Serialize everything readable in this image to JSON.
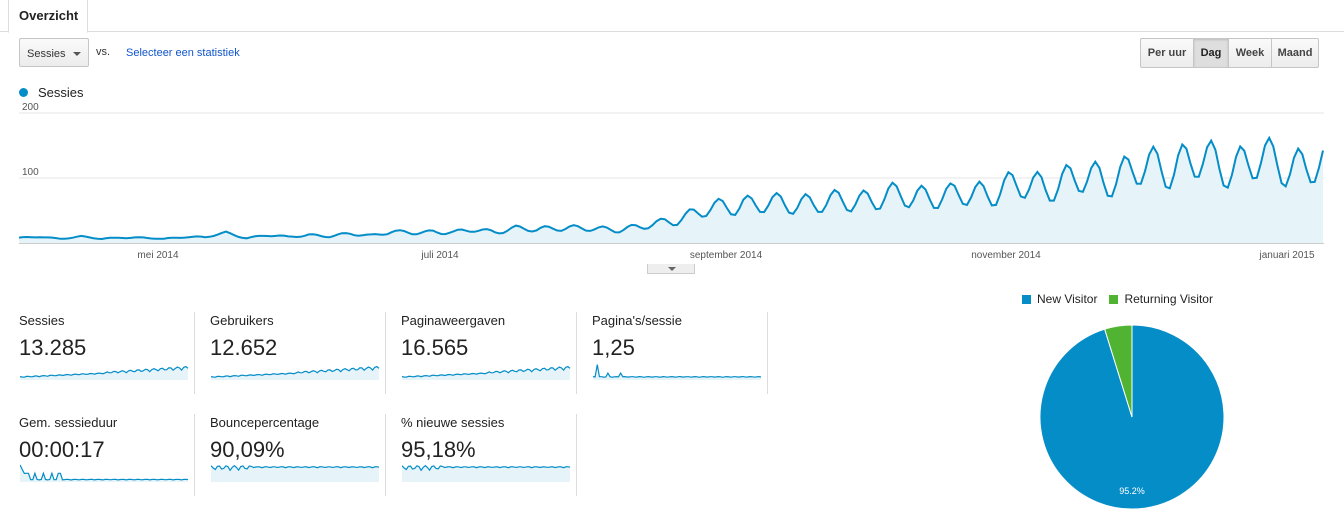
{
  "tabs": {
    "overview_label": "Overzicht"
  },
  "toolbar": {
    "metric_select_value": "Sessies",
    "vs_label": "vs.",
    "select_stat_link": "Selecteer een statistiek",
    "granularity": [
      {
        "label": "Per uur",
        "active": false
      },
      {
        "label": "Dag",
        "active": true
      },
      {
        "label": "Week",
        "active": false
      },
      {
        "label": "Maand",
        "active": false
      }
    ]
  },
  "colors": {
    "series": "#058dc7",
    "fill": "#e6f4fa",
    "new_visitor": "#058dc7",
    "returning_visitor": "#50b432"
  },
  "main_chart_legend": "Sessies",
  "chart_data": [
    {
      "type": "area",
      "series": [
        {
          "name": "Sessies",
          "anchors": [
            [
              0,
              8
            ],
            [
              5,
              9
            ],
            [
              10,
              7
            ],
            [
              15,
              10
            ],
            [
              20,
              6
            ],
            [
              25,
              9
            ],
            [
              30,
              8
            ],
            [
              35,
              6
            ],
            [
              40,
              10
            ],
            [
              45,
              9
            ],
            [
              50,
              15
            ],
            [
              55,
              8
            ],
            [
              60,
              12
            ],
            [
              65,
              9
            ],
            [
              70,
              13
            ],
            [
              75,
              10
            ],
            [
              80,
              14
            ],
            [
              85,
              12
            ],
            [
              90,
              17
            ],
            [
              95,
              15
            ],
            [
              100,
              18
            ],
            [
              105,
              16
            ],
            [
              110,
              20
            ],
            [
              115,
              18
            ],
            [
              120,
              22
            ],
            [
              125,
              20
            ],
            [
              130,
              25
            ],
            [
              135,
              22
            ],
            [
              140,
              21
            ],
            [
              145,
              22
            ],
            [
              150,
              24
            ],
            [
              155,
              30
            ],
            [
              160,
              40
            ],
            [
              165,
              48
            ],
            [
              170,
              55
            ],
            [
              175,
              62
            ],
            [
              180,
              58
            ],
            [
              185,
              60
            ],
            [
              190,
              63
            ],
            [
              195,
              60
            ],
            [
              200,
              65
            ],
            [
              205,
              68
            ],
            [
              210,
              70
            ],
            [
              215,
              72
            ],
            [
              220,
              74
            ],
            [
              225,
              70
            ],
            [
              230,
              76
            ],
            [
              235,
              80
            ],
            [
              240,
              85
            ],
            [
              245,
              88
            ],
            [
              250,
              92
            ],
            [
              255,
              95
            ],
            [
              260,
              100
            ],
            [
              265,
              103
            ],
            [
              270,
              110
            ],
            [
              275,
              118
            ],
            [
              280,
              122
            ],
            [
              285,
              125
            ],
            [
              290,
              120
            ],
            [
              295,
              122
            ],
            [
              300,
              125
            ],
            [
              305,
              122
            ],
            [
              310,
              120
            ],
            [
              315,
              118
            ]
          ]
        }
      ],
      "x_labels": [
        "mei 2014",
        "juli 2014",
        "september 2014",
        "november 2014",
        "januari 2015"
      ],
      "y_ticks": [
        "200",
        "100"
      ],
      "ylim": [
        0,
        200
      ],
      "grid": true
    }
  ],
  "tiles": [
    {
      "label": "Sessies",
      "value": "13.285",
      "trend": "growing"
    },
    {
      "label": "Gebruikers",
      "value": "12.652",
      "trend": "growing"
    },
    {
      "label": "Paginaweergaven",
      "value": "16.565",
      "trend": "growing"
    },
    {
      "label": "Pagina's/sessie",
      "value": "1,25",
      "trend": "flat"
    },
    {
      "label": "Gem. sessieduur",
      "value": "00:00:17",
      "trend": "spiky"
    },
    {
      "label": "Bouncepercentage",
      "value": "90,09%",
      "trend": "high"
    },
    {
      "label": "% nieuwe sessies",
      "value": "95,18%",
      "trend": "high"
    }
  ],
  "pie": {
    "legend": [
      {
        "label": "New Visitor"
      },
      {
        "label": "Returning Visitor"
      }
    ],
    "slices": [
      {
        "label": "New Visitor",
        "value": 95.2
      },
      {
        "label": "Returning Visitor",
        "value": 4.8
      }
    ],
    "slice_label": "95.2%"
  }
}
